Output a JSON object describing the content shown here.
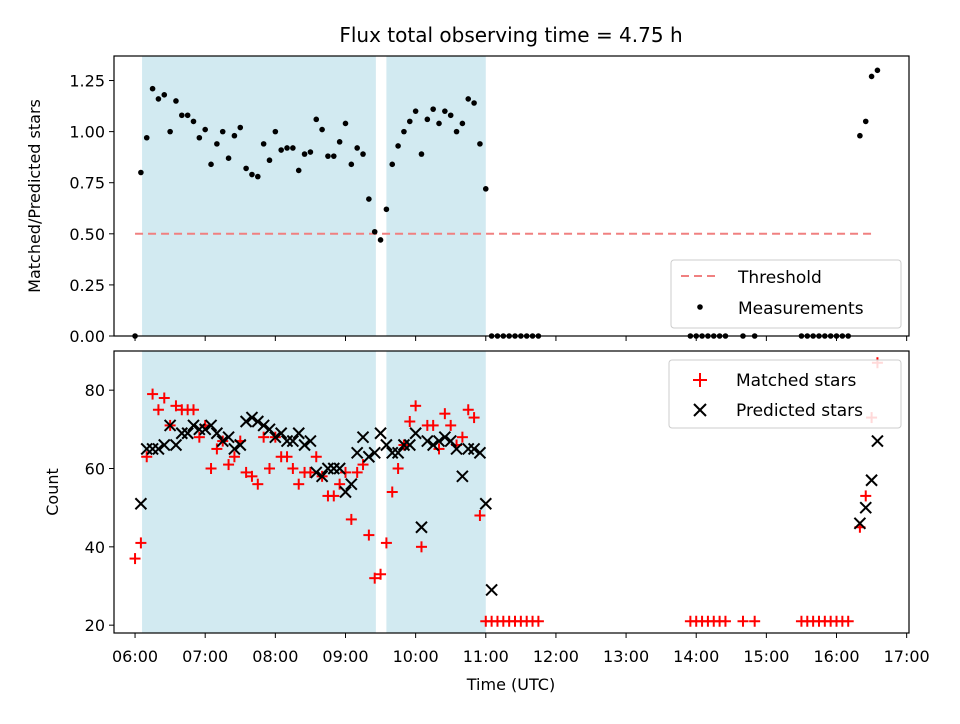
{
  "chart_data": [
    {
      "type": "scatter",
      "title": "Flux total observing time = 4.75 h",
      "xlabel": "",
      "ylabel": "Matched/Predicted stars",
      "xlim": [
        "05:42",
        "17:02"
      ],
      "ylim": [
        0,
        1.37
      ],
      "yticks": [
        "0.00",
        "0.25",
        "0.50",
        "0.75",
        "1.00",
        "1.25"
      ],
      "shaded_intervals": [
        [
          "06:06",
          "09:26"
        ],
        [
          "09:35",
          "11:00"
        ]
      ],
      "legend_position": "bottom-right",
      "grid": false,
      "series": [
        {
          "name": "Threshold",
          "style": "dashed-line",
          "color": "#f08080",
          "x": [
            "06:00",
            "16:30"
          ],
          "y": [
            0.5,
            0.5
          ]
        },
        {
          "name": "Measurements",
          "style": "dot",
          "color": "#000000",
          "points": [
            [
              "06:00",
              0.0
            ],
            [
              "06:05",
              0.8
            ],
            [
              "06:10",
              0.97
            ],
            [
              "06:15",
              1.21
            ],
            [
              "06:20",
              1.16
            ],
            [
              "06:25",
              1.18
            ],
            [
              "06:30",
              1.0
            ],
            [
              "06:35",
              1.15
            ],
            [
              "06:40",
              1.08
            ],
            [
              "06:45",
              1.08
            ],
            [
              "06:50",
              1.05
            ],
            [
              "06:55",
              0.97
            ],
            [
              "07:00",
              1.01
            ],
            [
              "07:05",
              0.84
            ],
            [
              "07:10",
              0.94
            ],
            [
              "07:15",
              1.0
            ],
            [
              "07:20",
              0.87
            ],
            [
              "07:25",
              0.98
            ],
            [
              "07:30",
              1.02
            ],
            [
              "07:35",
              0.82
            ],
            [
              "07:40",
              0.79
            ],
            [
              "07:45",
              0.78
            ],
            [
              "07:50",
              0.94
            ],
            [
              "07:55",
              0.86
            ],
            [
              "08:00",
              1.0
            ],
            [
              "08:05",
              0.91
            ],
            [
              "08:10",
              0.92
            ],
            [
              "08:15",
              0.92
            ],
            [
              "08:20",
              0.81
            ],
            [
              "08:25",
              0.89
            ],
            [
              "08:30",
              0.9
            ],
            [
              "08:35",
              1.06
            ],
            [
              "08:40",
              1.01
            ],
            [
              "08:45",
              0.88
            ],
            [
              "08:50",
              0.88
            ],
            [
              "08:55",
              0.95
            ],
            [
              "09:00",
              1.04
            ],
            [
              "09:05",
              0.84
            ],
            [
              "09:10",
              0.92
            ],
            [
              "09:15",
              0.89
            ],
            [
              "09:20",
              0.67
            ],
            [
              "09:25",
              0.51
            ],
            [
              "09:30",
              0.47
            ],
            [
              "09:35",
              0.62
            ],
            [
              "09:40",
              0.84
            ],
            [
              "09:45",
              0.93
            ],
            [
              "09:50",
              1.0
            ],
            [
              "09:55",
              1.05
            ],
            [
              "10:00",
              1.1
            ],
            [
              "10:05",
              0.89
            ],
            [
              "10:10",
              1.06
            ],
            [
              "10:15",
              1.11
            ],
            [
              "10:20",
              1.04
            ],
            [
              "10:25",
              1.1
            ],
            [
              "10:30",
              1.08
            ],
            [
              "10:35",
              1.0
            ],
            [
              "10:40",
              1.04
            ],
            [
              "10:45",
              1.16
            ],
            [
              "10:50",
              1.14
            ],
            [
              "10:55",
              0.94
            ],
            [
              "11:00",
              0.72
            ],
            [
              "11:05",
              0
            ],
            [
              "11:10",
              0
            ],
            [
              "11:15",
              0
            ],
            [
              "11:20",
              0
            ],
            [
              "11:25",
              0
            ],
            [
              "11:30",
              0
            ],
            [
              "11:35",
              0
            ],
            [
              "11:40",
              0
            ],
            [
              "11:45",
              0
            ],
            [
              "13:55",
              0
            ],
            [
              "14:00",
              0
            ],
            [
              "14:05",
              0
            ],
            [
              "14:10",
              0
            ],
            [
              "14:15",
              0
            ],
            [
              "14:20",
              0
            ],
            [
              "14:25",
              0
            ],
            [
              "14:40",
              0
            ],
            [
              "14:50",
              0
            ],
            [
              "15:30",
              0
            ],
            [
              "15:35",
              0
            ],
            [
              "15:40",
              0
            ],
            [
              "15:45",
              0
            ],
            [
              "15:50",
              0
            ],
            [
              "15:55",
              0
            ],
            [
              "16:00",
              0
            ],
            [
              "16:05",
              0
            ],
            [
              "16:10",
              0
            ],
            [
              "16:20",
              0.98
            ],
            [
              "16:25",
              1.05
            ],
            [
              "16:30",
              1.27
            ],
            [
              "16:35",
              1.3
            ]
          ]
        }
      ]
    },
    {
      "type": "scatter",
      "title": "",
      "xlabel": "Time (UTC)",
      "ylabel": "Count",
      "xlim": [
        "05:42",
        "17:02"
      ],
      "ylim": [
        18,
        90
      ],
      "yticks": [
        "20",
        "40",
        "60",
        "80"
      ],
      "xticks": [
        "06:00",
        "07:00",
        "08:00",
        "09:00",
        "10:00",
        "11:00",
        "12:00",
        "13:00",
        "14:00",
        "15:00",
        "16:00",
        "17:00"
      ],
      "shaded_intervals": [
        [
          "06:06",
          "09:26"
        ],
        [
          "09:35",
          "11:00"
        ]
      ],
      "legend_position": "top-right",
      "grid": false,
      "series": [
        {
          "name": "Matched stars",
          "style": "plus",
          "color": "#ff0000",
          "points": [
            [
              "06:00",
              37
            ],
            [
              "06:05",
              41
            ],
            [
              "06:10",
              63
            ],
            [
              "06:15",
              79
            ],
            [
              "06:20",
              75
            ],
            [
              "06:25",
              78
            ],
            [
              "06:30",
              71
            ],
            [
              "06:35",
              76
            ],
            [
              "06:40",
              75
            ],
            [
              "06:45",
              75
            ],
            [
              "06:50",
              75
            ],
            [
              "06:55",
              68
            ],
            [
              "07:00",
              71
            ],
            [
              "07:05",
              60
            ],
            [
              "07:10",
              65
            ],
            [
              "07:15",
              67
            ],
            [
              "07:20",
              61
            ],
            [
              "07:25",
              63
            ],
            [
              "07:30",
              67
            ],
            [
              "07:35",
              59
            ],
            [
              "07:40",
              58
            ],
            [
              "07:45",
              56
            ],
            [
              "07:50",
              68
            ],
            [
              "07:55",
              60
            ],
            [
              "08:00",
              68
            ],
            [
              "08:05",
              63
            ],
            [
              "08:10",
              63
            ],
            [
              "08:15",
              60
            ],
            [
              "08:20",
              56
            ],
            [
              "08:25",
              59
            ],
            [
              "08:30",
              59
            ],
            [
              "08:35",
              63
            ],
            [
              "08:40",
              58
            ],
            [
              "08:45",
              53
            ],
            [
              "08:50",
              53
            ],
            [
              "08:55",
              56
            ],
            [
              "09:00",
              59
            ],
            [
              "09:05",
              47
            ],
            [
              "09:10",
              59
            ],
            [
              "09:15",
              61
            ],
            [
              "09:20",
              43
            ],
            [
              "09:25",
              32
            ],
            [
              "09:30",
              33
            ],
            [
              "09:35",
              41
            ],
            [
              "09:40",
              54
            ],
            [
              "09:45",
              60
            ],
            [
              "09:50",
              66
            ],
            [
              "09:55",
              72
            ],
            [
              "10:00",
              76
            ],
            [
              "10:05",
              40
            ],
            [
              "10:10",
              71
            ],
            [
              "10:15",
              71
            ],
            [
              "10:20",
              65
            ],
            [
              "10:25",
              74
            ],
            [
              "10:30",
              71
            ],
            [
              "10:35",
              66
            ],
            [
              "10:40",
              68
            ],
            [
              "10:45",
              75
            ],
            [
              "10:50",
              73
            ],
            [
              "10:55",
              48
            ],
            [
              "11:00",
              21
            ],
            [
              "11:05",
              21
            ],
            [
              "11:10",
              21
            ],
            [
              "11:15",
              21
            ],
            [
              "11:20",
              21
            ],
            [
              "11:25",
              21
            ],
            [
              "11:30",
              21
            ],
            [
              "11:35",
              21
            ],
            [
              "11:40",
              21
            ],
            [
              "11:45",
              21
            ],
            [
              "13:55",
              21
            ],
            [
              "14:00",
              21
            ],
            [
              "14:05",
              21
            ],
            [
              "14:10",
              21
            ],
            [
              "14:15",
              21
            ],
            [
              "14:20",
              21
            ],
            [
              "14:25",
              21
            ],
            [
              "14:40",
              21
            ],
            [
              "14:50",
              21
            ],
            [
              "15:30",
              21
            ],
            [
              "15:35",
              21
            ],
            [
              "15:40",
              21
            ],
            [
              "15:45",
              21
            ],
            [
              "15:50",
              21
            ],
            [
              "15:55",
              21
            ],
            [
              "16:00",
              21
            ],
            [
              "16:05",
              21
            ],
            [
              "16:10",
              21
            ],
            [
              "16:20",
              45
            ],
            [
              "16:25",
              53
            ],
            [
              "16:30",
              73
            ],
            [
              "16:35",
              87
            ]
          ]
        },
        {
          "name": "Predicted stars",
          "style": "cross",
          "color": "#000000",
          "points": [
            [
              "06:05",
              51
            ],
            [
              "06:10",
              65
            ],
            [
              "06:15",
              65
            ],
            [
              "06:20",
              65
            ],
            [
              "06:25",
              66
            ],
            [
              "06:30",
              71
            ],
            [
              "06:35",
              66
            ],
            [
              "06:40",
              69
            ],
            [
              "06:45",
              69
            ],
            [
              "06:50",
              71
            ],
            [
              "06:55",
              70
            ],
            [
              "07:00",
              70
            ],
            [
              "07:05",
              71
            ],
            [
              "07:10",
              69
            ],
            [
              "07:15",
              67
            ],
            [
              "07:20",
              68
            ],
            [
              "07:25",
              65
            ],
            [
              "07:30",
              66
            ],
            [
              "07:35",
              72
            ],
            [
              "07:40",
              73
            ],
            [
              "07:45",
              72
            ],
            [
              "07:50",
              71
            ],
            [
              "07:55",
              70
            ],
            [
              "08:00",
              68
            ],
            [
              "08:05",
              69
            ],
            [
              "08:10",
              67
            ],
            [
              "08:15",
              67
            ],
            [
              "08:20",
              69
            ],
            [
              "08:25",
              66
            ],
            [
              "08:30",
              67
            ],
            [
              "08:35",
              59
            ],
            [
              "08:40",
              58
            ],
            [
              "08:45",
              60
            ],
            [
              "08:50",
              60
            ],
            [
              "08:55",
              60
            ],
            [
              "09:00",
              54
            ],
            [
              "09:05",
              56
            ],
            [
              "09:10",
              64
            ],
            [
              "09:15",
              68
            ],
            [
              "09:20",
              63
            ],
            [
              "09:25",
              64
            ],
            [
              "09:30",
              69
            ],
            [
              "09:35",
              66
            ],
            [
              "09:40",
              64
            ],
            [
              "09:45",
              64
            ],
            [
              "09:50",
              66
            ],
            [
              "09:55",
              66
            ],
            [
              "10:00",
              69
            ],
            [
              "10:05",
              45
            ],
            [
              "10:10",
              67
            ],
            [
              "10:15",
              66
            ],
            [
              "10:20",
              67
            ],
            [
              "10:25",
              68
            ],
            [
              "10:30",
              67
            ],
            [
              "10:35",
              65
            ],
            [
              "10:40",
              58
            ],
            [
              "10:45",
              65
            ],
            [
              "10:50",
              65
            ],
            [
              "10:55",
              64
            ],
            [
              "11:00",
              51
            ],
            [
              "11:05",
              29
            ],
            [
              "16:20",
              46
            ],
            [
              "16:25",
              50
            ],
            [
              "16:30",
              57
            ],
            [
              "16:35",
              67
            ]
          ]
        }
      ]
    }
  ]
}
